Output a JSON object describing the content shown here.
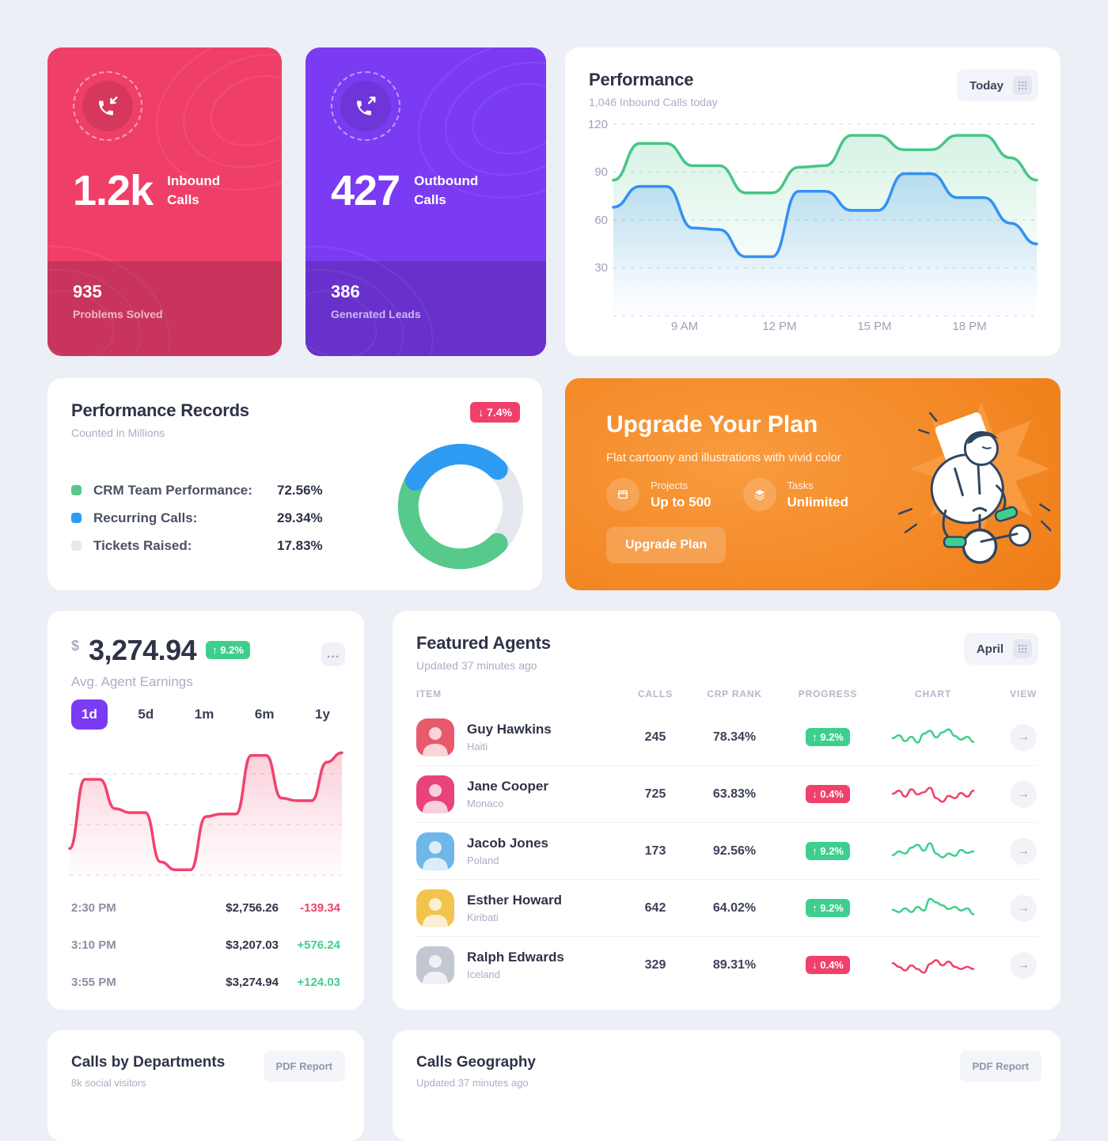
{
  "colors": {
    "page_bg": "#ECEFF5",
    "heading": "#2E3348",
    "muted": "#A9AFC3",
    "pink": "#EF3F68",
    "red": "#F0406B",
    "purple": "#7B3BF2",
    "green": "#3ECF8E",
    "green_line": "#47C685",
    "blue": "#3490F4",
    "blue_donut": "#2E9BF3",
    "gray_arc": "#E5E8EF",
    "orange_a": "#EE7911",
    "orange_b": "#F99B3E",
    "navy": "#2F4561"
  },
  "icons": {
    "arrow_right": "→",
    "dots_menu": "..."
  },
  "stat_cards": [
    {
      "value": "1.2k",
      "label": "Inbound Calls",
      "footer_value": "935",
      "footer_label": "Problems Solved",
      "icon": "phone-inbound-icon"
    },
    {
      "value": "427",
      "label": "Outbound Calls",
      "footer_value": "386",
      "footer_label": "Generated Leads",
      "icon": "phone-outbound-icon"
    }
  ],
  "performance": {
    "title": "Performance",
    "subtitle": "1,046 Inbound Calls today",
    "range_button": "Today",
    "y_ticks": [
      "120",
      "90",
      "60",
      "30"
    ],
    "x_ticks": [
      "9 AM",
      "12 PM",
      "15 PM",
      "18 PM"
    ],
    "chart_data": {
      "type": "area",
      "ylim": [
        0,
        120
      ],
      "x_labels": [
        "9 AM",
        "12 PM",
        "15 PM",
        "18 PM"
      ],
      "series": [
        {
          "name": "green",
          "values": [
            85,
            108,
            108,
            94,
            94,
            77,
            77,
            93,
            94,
            113,
            113,
            104,
            104,
            113,
            113,
            99,
            85
          ]
        },
        {
          "name": "blue",
          "values": [
            68,
            81,
            81,
            55,
            54,
            37,
            37,
            78,
            78,
            66,
            66,
            89,
            89,
            74,
            74,
            58,
            45
          ]
        }
      ]
    }
  },
  "records": {
    "title": "Performance Records",
    "subtitle": "Counted in Millions",
    "badge": "↓ 7.4%",
    "legend": [
      {
        "label": "CRM Team Performance:",
        "value": "72.56%",
        "color": "#57C98B"
      },
      {
        "label": "Recurring Calls:",
        "value": "29.34%",
        "color": "#2E9BF3"
      },
      {
        "label": "Tickets Raised:",
        "value": "17.83%",
        "color": "#E5E8EF"
      }
    ],
    "chart_data": {
      "type": "pie",
      "donut_segments": [
        {
          "name": "gray",
          "start": 45,
          "end": 135
        },
        {
          "name": "green",
          "start": 135,
          "end": 300
        },
        {
          "name": "blue",
          "start": 300,
          "end": 45
        }
      ]
    }
  },
  "upgrade": {
    "title": "Upgrade Your Plan",
    "subtitle": "Flat cartoony and illustrations with vivid color",
    "features": [
      {
        "label": "Projects",
        "value": "Up to 500",
        "icon": "box-icon"
      },
      {
        "label": "Tasks",
        "value": "Unlimited",
        "icon": "layers-icon"
      }
    ],
    "button": "Upgrade Plan"
  },
  "earnings": {
    "currency": "$",
    "value": "3,274.94",
    "badge": "↑ 9.2%",
    "subtitle": "Avg. Agent Earnings",
    "menu_button": "...",
    "tabs": [
      {
        "label": "1d",
        "active": true
      },
      {
        "label": "5d",
        "active": false
      },
      {
        "label": "1m",
        "active": false
      },
      {
        "label": "6m",
        "active": false
      },
      {
        "label": "1y",
        "active": false
      }
    ],
    "chart_data": {
      "type": "area",
      "values": [
        20,
        72,
        72,
        50,
        47,
        47,
        10,
        4,
        4,
        44,
        46,
        46,
        90,
        90,
        58,
        56,
        56,
        85,
        92
      ]
    },
    "rows": [
      {
        "time": "2:30 PM",
        "value": "$2,756.26",
        "delta": "-139.34",
        "dir": "down"
      },
      {
        "time": "3:10 PM",
        "value": "$3,207.03",
        "delta": "+576.24",
        "dir": "up"
      },
      {
        "time": "3:55 PM",
        "value": "$3,274.94",
        "delta": "+124.03",
        "dir": "up"
      }
    ]
  },
  "agents": {
    "title": "Featured Agents",
    "subtitle": "Updated 37 minutes ago",
    "range_button": "April",
    "columns": [
      "ITEM",
      "CALLS",
      "CRP RANK",
      "PROGRESS",
      "CHART",
      "VIEW"
    ],
    "rows": [
      {
        "name": "Guy Hawkins",
        "country": "Haiti",
        "calls": "245",
        "rank": "78.34%",
        "progress": "↑ 9.2%",
        "trend": "up",
        "avatar_color": "#E85A6B",
        "spark": [
          14,
          18,
          10,
          16,
          8,
          20,
          24,
          15,
          22,
          26,
          17,
          12,
          16,
          9
        ]
      },
      {
        "name": "Jane Cooper",
        "country": "Monaco",
        "calls": "725",
        "rank": "63.83%",
        "progress": "↓ 0.4%",
        "trend": "down",
        "avatar_color": "#E8447A",
        "spark": [
          16,
          20,
          12,
          22,
          15,
          18,
          24,
          10,
          5,
          13,
          10,
          17,
          12,
          20
        ]
      },
      {
        "name": "Jacob Jones",
        "country": "Poland",
        "calls": "173",
        "rank": "92.56%",
        "progress": "↑ 9.2%",
        "trend": "up",
        "avatar_color": "#6FB7E8",
        "spark": [
          10,
          15,
          12,
          20,
          24,
          16,
          26,
          12,
          7,
          12,
          9,
          17,
          13,
          15
        ]
      },
      {
        "name": "Esther Howard",
        "country": "Kiribati",
        "calls": "642",
        "rank": "64.02%",
        "progress": "↑ 9.2%",
        "trend": "up",
        "avatar_color": "#F2C44D",
        "spark": [
          13,
          10,
          15,
          10,
          17,
          12,
          28,
          23,
          19,
          14,
          17,
          12,
          15,
          7
        ]
      },
      {
        "name": "Ralph Edwards",
        "country": "Iceland",
        "calls": "329",
        "rank": "89.31%",
        "progress": "↓ 0.4%",
        "trend": "down",
        "avatar_color": "#C2C7D2",
        "spark": [
          18,
          13,
          8,
          15,
          10,
          5,
          17,
          22,
          15,
          20,
          13,
          10,
          13,
          10
        ]
      }
    ]
  },
  "departments": {
    "title": "Calls by Departments",
    "subtitle": "8k social visitors",
    "button": "PDF Report"
  },
  "geography": {
    "title": "Calls Geography",
    "subtitle": "Updated 37 minutes ago",
    "button": "PDF Report"
  }
}
